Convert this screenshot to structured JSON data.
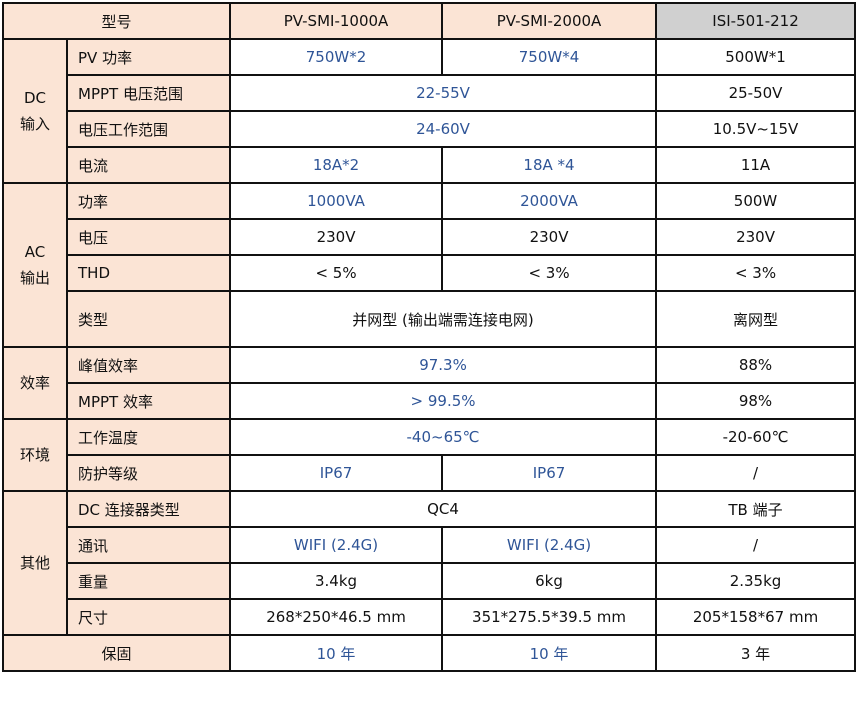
{
  "header": {
    "model_label": "型号",
    "col1": "PV-SMI-1000A",
    "col2": "PV-SMI-2000A",
    "col3": "ISI-501-212"
  },
  "colors": {
    "label_bg": "#fbe4d5",
    "isi_header_bg": "#d0d0d0",
    "highlight_text": "#2f5597"
  },
  "groups": {
    "dc_in_1": "DC",
    "dc_in_2": "输入",
    "ac_out_1": "AC",
    "ac_out_2": "输出",
    "efficiency": "效率",
    "environment": "环境",
    "other": "其他"
  },
  "rows": {
    "pv_power": {
      "label": "PV 功率",
      "c1": "750W*2",
      "c2": "750W*4",
      "c3": "500W*1"
    },
    "mppt_range": {
      "label": "MPPT 电压范围",
      "c12": "22-55V",
      "c3": "25-50V"
    },
    "op_voltage": {
      "label": "电压工作范围",
      "c12": "24-60V",
      "c3": "10.5V~15V"
    },
    "current": {
      "label": "电流",
      "c1": "18A*2",
      "c2": "18A *4",
      "c3": "11A"
    },
    "ac_power": {
      "label": "功率",
      "c1": "1000VA",
      "c2": "2000VA",
      "c3": "500W"
    },
    "ac_voltage": {
      "label": "电压",
      "c1": "230V",
      "c2": "230V",
      "c3": "230V"
    },
    "thd": {
      "label": "THD",
      "c1": "< 5%",
      "c2": "< 3%",
      "c3": "< 3%"
    },
    "type": {
      "label": "类型",
      "c12": "并网型 (输出端需连接电网)",
      "c3": "离网型"
    },
    "peak_eff": {
      "label": "峰值效率",
      "c12": "97.3%",
      "c3": "88%"
    },
    "mppt_eff": {
      "label": "MPPT 效率",
      "c12": "> 99.5%",
      "c3": "98%"
    },
    "temp": {
      "label": "工作温度",
      "c12": "-40~65℃",
      "c3": "-20-60℃"
    },
    "ip": {
      "label": "防护等级",
      "c1": "IP67",
      "c2": "IP67",
      "c3": "/"
    },
    "connector": {
      "label": "DC 连接器类型",
      "c12": "QC4",
      "c3": "TB 端子"
    },
    "comm": {
      "label": "通讯",
      "c1": "WIFI (2.4G)",
      "c2": "WIFI (2.4G)",
      "c3": "/"
    },
    "weight": {
      "label": "重量",
      "c1": "3.4kg",
      "c2": "6kg",
      "c3": "2.35kg"
    },
    "size": {
      "label": "尺寸",
      "c1": "268*250*46.5 mm",
      "c2": "351*275.5*39.5 mm",
      "c3": "205*158*67 mm"
    },
    "warranty": {
      "label": "保固",
      "c1": "10 年",
      "c2": "10 年",
      "c3": "3 年"
    }
  }
}
